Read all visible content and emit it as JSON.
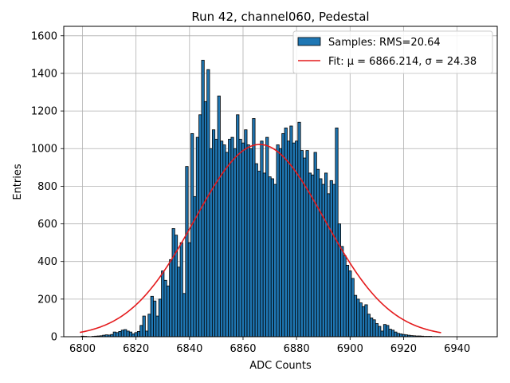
{
  "chart_data": {
    "type": "bar",
    "title": "Run 42, channel060, Pedestal",
    "xlabel": "ADC Counts",
    "ylabel": "Entries",
    "xlim": [
      6793,
      6955
    ],
    "ylim": [
      0,
      1650
    ],
    "x_ticks": [
      6800,
      6820,
      6840,
      6860,
      6880,
      6900,
      6920,
      6940
    ],
    "y_ticks": [
      0,
      200,
      400,
      600,
      800,
      1000,
      1200,
      1400,
      1600
    ],
    "grid": true,
    "legend_position": "top-right",
    "colors": {
      "bars": "#1f77b4",
      "bar_edge": "#000000",
      "fit": "#e41a1c"
    },
    "series": [
      {
        "name": "Samples: RMS=20.64",
        "kind": "histogram",
        "bin_width": 1,
        "x": [
          6800,
          6801,
          6802,
          6803,
          6804,
          6805,
          6806,
          6807,
          6808,
          6809,
          6810,
          6811,
          6812,
          6813,
          6814,
          6815,
          6816,
          6817,
          6818,
          6819,
          6820,
          6821,
          6822,
          6823,
          6824,
          6825,
          6826,
          6827,
          6828,
          6829,
          6830,
          6831,
          6832,
          6833,
          6834,
          6835,
          6836,
          6837,
          6838,
          6839,
          6840,
          6841,
          6842,
          6843,
          6844,
          6845,
          6846,
          6847,
          6848,
          6849,
          6850,
          6851,
          6852,
          6853,
          6854,
          6855,
          6856,
          6857,
          6858,
          6859,
          6860,
          6861,
          6862,
          6863,
          6864,
          6865,
          6866,
          6867,
          6868,
          6869,
          6870,
          6871,
          6872,
          6873,
          6874,
          6875,
          6876,
          6877,
          6878,
          6879,
          6880,
          6881,
          6882,
          6883,
          6884,
          6885,
          6886,
          6887,
          6888,
          6889,
          6890,
          6891,
          6892,
          6893,
          6894,
          6895,
          6896,
          6897,
          6898,
          6899,
          6900,
          6901,
          6902,
          6903,
          6904,
          6905,
          6906,
          6907,
          6908,
          6909,
          6910,
          6911,
          6912,
          6913,
          6914,
          6915,
          6916,
          6917,
          6918,
          6919,
          6920,
          6921,
          6922,
          6923,
          6924,
          6925,
          6926,
          6927,
          6928,
          6929,
          6930,
          6931,
          6932,
          6933,
          6934
        ],
        "values": [
          3,
          2,
          1,
          0,
          2,
          3,
          4,
          5,
          8,
          10,
          9,
          12,
          25,
          22,
          28,
          35,
          38,
          30,
          25,
          15,
          22,
          28,
          60,
          110,
          30,
          120,
          215,
          190,
          110,
          200,
          350,
          300,
          270,
          410,
          575,
          540,
          370,
          500,
          230,
          905,
          500,
          1080,
          745,
          1060,
          1180,
          1470,
          1250,
          1420,
          1000,
          1100,
          1050,
          1280,
          1040,
          1020,
          980,
          1050,
          1060,
          1000,
          1180,
          1050,
          1030,
          1100,
          1020,
          1000,
          1160,
          920,
          880,
          1040,
          870,
          1060,
          850,
          840,
          810,
          1020,
          1000,
          1080,
          1110,
          1040,
          1120,
          1030,
          1040,
          1140,
          990,
          950,
          990,
          870,
          860,
          980,
          890,
          840,
          810,
          870,
          760,
          830,
          810,
          1110,
          600,
          480,
          430,
          380,
          350,
          310,
          220,
          200,
          180,
          160,
          170,
          120,
          100,
          90,
          70,
          55,
          30,
          65,
          60,
          40,
          35,
          25,
          18,
          15,
          12,
          10,
          8,
          6,
          5,
          4,
          4,
          3,
          2,
          2,
          2,
          1,
          1,
          1
        ]
      },
      {
        "name": "Fit: μ = 6866.214, σ = 24.38",
        "kind": "gaussian",
        "mu": 6866.214,
        "sigma": 24.38,
        "amplitude": 1022,
        "x_range": [
          6799,
          6934
        ]
      }
    ]
  }
}
